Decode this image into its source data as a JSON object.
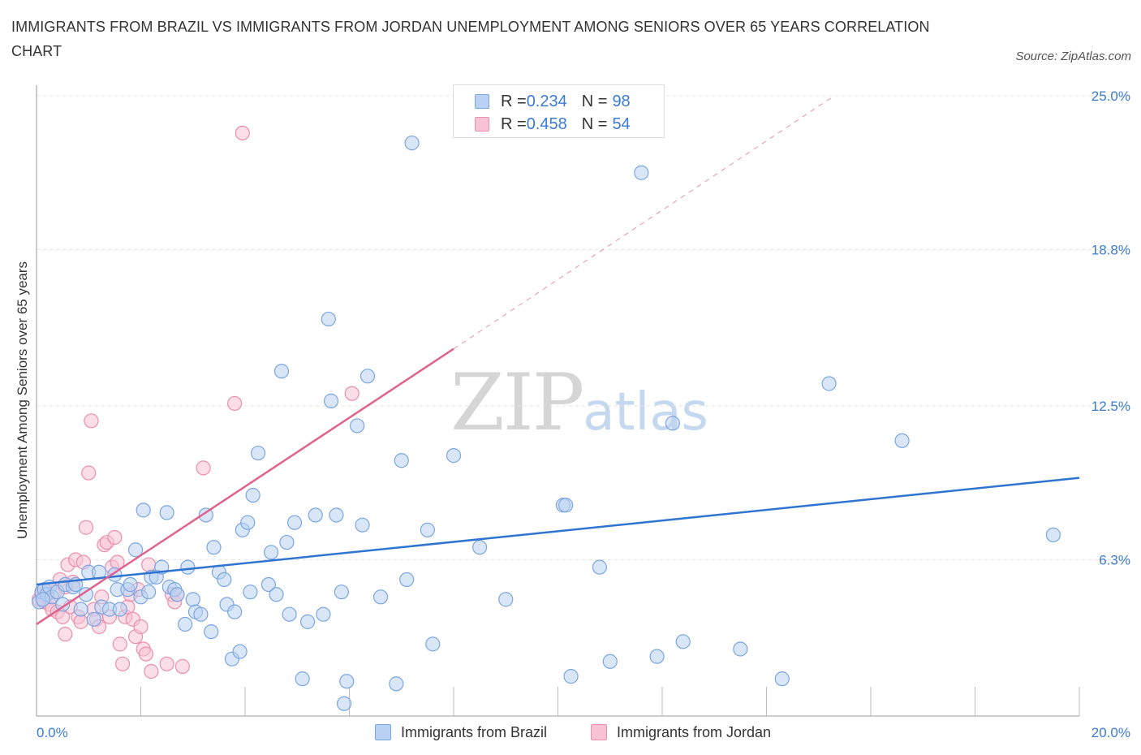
{
  "title": "IMMIGRANTS FROM BRAZIL VS IMMIGRANTS FROM JORDAN UNEMPLOYMENT AMONG SENIORS OVER 65 YEARS CORRELATION CHART",
  "source": "Source: ZipAtlas.com",
  "watermark": {
    "zip": "ZIP",
    "atlas": "atlas"
  },
  "colors": {
    "brazil_fill": "#b9d1f3",
    "brazil_stroke": "#7aa6e0",
    "brazil_line": "#2f74d0",
    "jordan_fill": "#f7c2d3",
    "jordan_stroke": "#ea8fae",
    "jordan_line": "#e0628f",
    "axis_label": "#3b7bd4",
    "grid": "#e3e3e3"
  },
  "legend_top": [
    {
      "r_label": "R = ",
      "r_value": "0.234",
      "n_label": "N = ",
      "n_value": "98"
    },
    {
      "r_label": "R = ",
      "r_value": "0.458",
      "n_label": "N = ",
      "n_value": "54"
    }
  ],
  "chart_data": {
    "type": "scatter",
    "title": "IMMIGRANTS FROM BRAZIL VS IMMIGRANTS FROM JORDAN UNEMPLOYMENT AMONG SENIORS OVER 65 YEARS CORRELATION CHART",
    "xlabel": "",
    "ylabel": "Unemployment Among Seniors over 65 years",
    "xlim": [
      0,
      20
    ],
    "ylim": [
      0,
      25
    ],
    "y_ticks": [
      {
        "value": 6.3,
        "label": "6.3%"
      },
      {
        "value": 12.5,
        "label": "12.5%"
      },
      {
        "value": 18.8,
        "label": "18.8%"
      },
      {
        "value": 25.0,
        "label": "25.0%"
      }
    ],
    "x_tick_labels": [
      {
        "value": 0,
        "label": "0.0%"
      },
      {
        "value": 20,
        "label": "20.0%"
      }
    ],
    "grid": true,
    "legend_position": "top-center",
    "series": [
      {
        "name": "Immigrants from Brazil",
        "points": [
          [
            0.05,
            4.6
          ],
          [
            0.1,
            5.0
          ],
          [
            0.15,
            5.1
          ],
          [
            0.2,
            4.9
          ],
          [
            0.25,
            5.2
          ],
          [
            0.3,
            4.8
          ],
          [
            0.4,
            5.0
          ],
          [
            0.5,
            4.5
          ],
          [
            0.55,
            5.3
          ],
          [
            0.7,
            5.2
          ],
          [
            0.75,
            5.3
          ],
          [
            0.85,
            4.3
          ],
          [
            0.95,
            4.9
          ],
          [
            1.0,
            5.8
          ],
          [
            1.1,
            3.9
          ],
          [
            1.2,
            5.8
          ],
          [
            1.25,
            4.4
          ],
          [
            1.4,
            4.3
          ],
          [
            1.5,
            5.7
          ],
          [
            1.55,
            5.1
          ],
          [
            1.6,
            4.3
          ],
          [
            1.75,
            5.1
          ],
          [
            1.8,
            5.3
          ],
          [
            1.9,
            6.7
          ],
          [
            2.0,
            4.8
          ],
          [
            2.05,
            8.3
          ],
          [
            2.15,
            5.0
          ],
          [
            2.2,
            5.6
          ],
          [
            2.3,
            5.6
          ],
          [
            2.4,
            6.0
          ],
          [
            2.5,
            8.2
          ],
          [
            2.55,
            5.2
          ],
          [
            2.65,
            5.1
          ],
          [
            2.7,
            4.9
          ],
          [
            2.85,
            3.7
          ],
          [
            2.9,
            6.0
          ],
          [
            3.0,
            4.7
          ],
          [
            3.05,
            4.2
          ],
          [
            3.15,
            4.1
          ],
          [
            3.25,
            8.1
          ],
          [
            3.35,
            3.4
          ],
          [
            3.4,
            6.8
          ],
          [
            3.5,
            5.8
          ],
          [
            3.6,
            5.5
          ],
          [
            3.65,
            4.5
          ],
          [
            3.75,
            2.3
          ],
          [
            3.8,
            4.2
          ],
          [
            3.9,
            2.6
          ],
          [
            3.95,
            7.5
          ],
          [
            4.05,
            7.8
          ],
          [
            4.1,
            5.0
          ],
          [
            4.15,
            8.9
          ],
          [
            4.25,
            10.6
          ],
          [
            4.45,
            5.3
          ],
          [
            4.5,
            6.6
          ],
          [
            4.6,
            4.9
          ],
          [
            4.7,
            13.9
          ],
          [
            4.8,
            7.0
          ],
          [
            4.85,
            4.1
          ],
          [
            4.95,
            7.8
          ],
          [
            5.1,
            1.5
          ],
          [
            5.2,
            3.8
          ],
          [
            5.35,
            8.1
          ],
          [
            5.5,
            4.1
          ],
          [
            5.6,
            16.0
          ],
          [
            5.65,
            12.7
          ],
          [
            5.75,
            8.1
          ],
          [
            5.85,
            5.0
          ],
          [
            5.9,
            0.5
          ],
          [
            5.95,
            1.4
          ],
          [
            6.15,
            11.7
          ],
          [
            6.25,
            7.7
          ],
          [
            6.35,
            13.7
          ],
          [
            6.6,
            4.8
          ],
          [
            6.9,
            1.3
          ],
          [
            7.0,
            10.3
          ],
          [
            7.1,
            5.5
          ],
          [
            7.5,
            7.5
          ],
          [
            7.6,
            2.9
          ],
          [
            8.0,
            10.5
          ],
          [
            7.2,
            23.1
          ],
          [
            8.5,
            6.8
          ],
          [
            9.0,
            4.7
          ],
          [
            10.1,
            8.5
          ],
          [
            10.15,
            8.5
          ],
          [
            10.25,
            1.6
          ],
          [
            10.8,
            6.0
          ],
          [
            11.0,
            2.2
          ],
          [
            11.6,
            21.9
          ],
          [
            11.9,
            2.4
          ],
          [
            12.4,
            3.0
          ],
          [
            12.2,
            11.8
          ],
          [
            13.5,
            2.7
          ],
          [
            14.3,
            1.5
          ],
          [
            15.2,
            13.4
          ],
          [
            16.6,
            11.1
          ],
          [
            19.5,
            7.3
          ],
          [
            0.12,
            4.7
          ]
        ]
      },
      {
        "name": "Immigrants from Jordan",
        "points": [
          [
            0.05,
            4.7
          ],
          [
            0.1,
            4.9
          ],
          [
            0.15,
            4.6
          ],
          [
            0.2,
            5.0
          ],
          [
            0.25,
            4.5
          ],
          [
            0.3,
            4.3
          ],
          [
            0.35,
            5.0
          ],
          [
            0.4,
            4.2
          ],
          [
            0.45,
            5.5
          ],
          [
            0.5,
            4.0
          ],
          [
            0.55,
            5.2
          ],
          [
            0.6,
            6.1
          ],
          [
            0.65,
            4.4
          ],
          [
            0.7,
            5.4
          ],
          [
            0.75,
            6.3
          ],
          [
            0.8,
            4.0
          ],
          [
            0.85,
            3.8
          ],
          [
            0.9,
            6.2
          ],
          [
            0.95,
            7.6
          ],
          [
            1.0,
            9.8
          ],
          [
            1.05,
            11.9
          ],
          [
            1.1,
            4.3
          ],
          [
            1.15,
            3.9
          ],
          [
            1.2,
            3.6
          ],
          [
            1.25,
            4.8
          ],
          [
            1.3,
            6.9
          ],
          [
            1.35,
            7.0
          ],
          [
            1.4,
            4.0
          ],
          [
            1.45,
            6.0
          ],
          [
            1.5,
            7.2
          ],
          [
            1.55,
            6.2
          ],
          [
            1.6,
            2.9
          ],
          [
            1.65,
            2.1
          ],
          [
            1.7,
            4.0
          ],
          [
            1.75,
            4.4
          ],
          [
            1.8,
            4.9
          ],
          [
            1.85,
            3.9
          ],
          [
            1.9,
            3.2
          ],
          [
            1.95,
            5.1
          ],
          [
            2.0,
            3.6
          ],
          [
            2.05,
            2.7
          ],
          [
            2.1,
            2.5
          ],
          [
            2.15,
            6.1
          ],
          [
            2.2,
            1.8
          ],
          [
            2.5,
            2.1
          ],
          [
            2.6,
            4.9
          ],
          [
            2.65,
            4.6
          ],
          [
            2.7,
            4.9
          ],
          [
            2.8,
            2.0
          ],
          [
            3.2,
            10.0
          ],
          [
            3.8,
            12.6
          ],
          [
            3.95,
            23.5
          ],
          [
            6.05,
            13.0
          ],
          [
            0.55,
            3.3
          ]
        ]
      }
    ],
    "trendlines": [
      {
        "series": "Immigrants from Brazil",
        "x": [
          0,
          20
        ],
        "y": [
          5.3,
          9.6
        ],
        "style": "solid"
      },
      {
        "series": "Immigrants from Jordan",
        "x": [
          0,
          8.0
        ],
        "y": [
          3.7,
          14.8
        ],
        "style": "solid"
      },
      {
        "series": "Immigrants from Jordan",
        "x": [
          8.0,
          15.3
        ],
        "y": [
          14.8,
          25.0
        ],
        "style": "dashed"
      }
    ]
  },
  "legend_bottom": [
    {
      "label": "Immigrants from Brazil"
    },
    {
      "label": "Immigrants from Jordan"
    }
  ]
}
